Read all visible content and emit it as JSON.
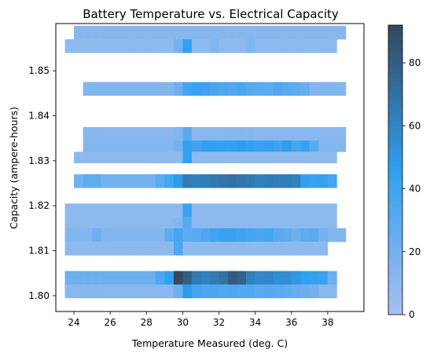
{
  "chart_data": {
    "type": "heatmap",
    "title": "Battery Temperature vs. Electrical Capacity",
    "xlabel": "Temperature Measured (deg. C)",
    "ylabel": "Capacity (ampere-hours)",
    "xlim": [
      23.0,
      40.0
    ],
    "ylim": [
      1.7965,
      1.8605
    ],
    "x_ticks": [
      24,
      26,
      28,
      30,
      32,
      34,
      36,
      38
    ],
    "y_ticks": [
      1.8,
      1.81,
      1.82,
      1.83,
      1.84,
      1.85
    ],
    "x_tick_labels": [
      "24",
      "26",
      "28",
      "30",
      "32",
      "34",
      "36",
      "38"
    ],
    "y_tick_labels": [
      "1.80",
      "1.81",
      "1.82",
      "1.83",
      "1.84",
      "1.85"
    ],
    "colorbar": {
      "min": 0,
      "max": 92,
      "ticks": [
        0,
        20,
        40,
        60,
        80
      ],
      "tick_labels": [
        "0",
        "20",
        "40",
        "60",
        "80"
      ],
      "color_low": "#a7c0ef",
      "color_mid": "#2f9ff0",
      "color_high": "#35485f"
    },
    "bin_width_x": 0.5,
    "rows": [
      {
        "y0": 1.857,
        "y1": 1.86,
        "x0": 24.0,
        "x1": 39.0,
        "base": 12,
        "hot": []
      },
      {
        "y0": 1.854,
        "y1": 1.857,
        "x0": 23.5,
        "x1": 38.5,
        "base": 10,
        "hot": [
          {
            "x": 29.5,
            "v": 20
          },
          {
            "x": 30.0,
            "v": 45
          },
          {
            "x": 31.5,
            "v": 15
          },
          {
            "x": 33.5,
            "v": 15
          }
        ]
      },
      {
        "y0": 1.8445,
        "y1": 1.8475,
        "x0": 24.5,
        "x1": 39.0,
        "base": 14,
        "hot": [
          {
            "x": 29.5,
            "v": 22
          },
          {
            "x": 30.0,
            "v": 38
          },
          {
            "x": 30.5,
            "v": 42
          },
          {
            "x": 31.0,
            "v": 40
          },
          {
            "x": 31.5,
            "v": 38
          },
          {
            "x": 32.0,
            "v": 35
          },
          {
            "x": 32.5,
            "v": 33
          },
          {
            "x": 33.0,
            "v": 36
          },
          {
            "x": 33.5,
            "v": 32
          },
          {
            "x": 34.0,
            "v": 30
          },
          {
            "x": 34.5,
            "v": 28
          },
          {
            "x": 35.0,
            "v": 33
          },
          {
            "x": 35.5,
            "v": 30
          },
          {
            "x": 36.0,
            "v": 28
          },
          {
            "x": 36.5,
            "v": 25
          }
        ]
      },
      {
        "y0": 1.8345,
        "y1": 1.8375,
        "x0": 24.5,
        "x1": 39.0,
        "base": 12,
        "hot": [
          {
            "x": 29.5,
            "v": 15
          },
          {
            "x": 30.0,
            "v": 30
          }
        ]
      },
      {
        "y0": 1.832,
        "y1": 1.8345,
        "x0": 24.5,
        "x1": 39.0,
        "base": 14,
        "hot": [
          {
            "x": 29.5,
            "v": 20
          },
          {
            "x": 30.0,
            "v": 45
          },
          {
            "x": 30.5,
            "v": 40
          },
          {
            "x": 31.0,
            "v": 45
          },
          {
            "x": 31.5,
            "v": 45
          },
          {
            "x": 32.0,
            "v": 45
          },
          {
            "x": 32.5,
            "v": 45
          },
          {
            "x": 33.0,
            "v": 47
          },
          {
            "x": 33.5,
            "v": 45
          },
          {
            "x": 34.0,
            "v": 42
          },
          {
            "x": 34.5,
            "v": 45
          },
          {
            "x": 35.0,
            "v": 40
          },
          {
            "x": 35.5,
            "v": 47
          },
          {
            "x": 36.0,
            "v": 38
          },
          {
            "x": 36.5,
            "v": 42
          },
          {
            "x": 37.0,
            "v": 30
          }
        ]
      },
      {
        "y0": 1.8295,
        "y1": 1.832,
        "x0": 24.0,
        "x1": 38.5,
        "base": 10,
        "hot": [
          {
            "x": 30.0,
            "v": 45
          }
        ]
      },
      {
        "y0": 1.824,
        "y1": 1.827,
        "x0": 24.0,
        "x1": 38.5,
        "base": 20,
        "hot": [
          {
            "x": 24.5,
            "v": 28
          },
          {
            "x": 25.0,
            "v": 28
          },
          {
            "x": 28.5,
            "v": 30
          },
          {
            "x": 29.0,
            "v": 38
          },
          {
            "x": 29.5,
            "v": 48
          },
          {
            "x": 30.0,
            "v": 65
          },
          {
            "x": 30.5,
            "v": 62
          },
          {
            "x": 31.0,
            "v": 64
          },
          {
            "x": 31.5,
            "v": 66
          },
          {
            "x": 32.0,
            "v": 68
          },
          {
            "x": 32.5,
            "v": 70
          },
          {
            "x": 33.0,
            "v": 68
          },
          {
            "x": 33.5,
            "v": 66
          },
          {
            "x": 34.0,
            "v": 62
          },
          {
            "x": 34.5,
            "v": 65
          },
          {
            "x": 35.0,
            "v": 63
          },
          {
            "x": 35.5,
            "v": 64
          },
          {
            "x": 36.0,
            "v": 62
          },
          {
            "x": 36.5,
            "v": 45
          },
          {
            "x": 37.0,
            "v": 42
          },
          {
            "x": 37.5,
            "v": 44
          },
          {
            "x": 38.0,
            "v": 38
          }
        ]
      },
      {
        "y0": 1.8175,
        "y1": 1.8205,
        "x0": 23.5,
        "x1": 38.5,
        "base": 10,
        "hot": [
          {
            "x": 30.0,
            "v": 42
          }
        ]
      },
      {
        "y0": 1.815,
        "y1": 1.8175,
        "x0": 23.5,
        "x1": 38.5,
        "base": 10,
        "hot": [
          {
            "x": 29.5,
            "v": 14
          },
          {
            "x": 30.0,
            "v": 30
          }
        ]
      },
      {
        "y0": 1.812,
        "y1": 1.815,
        "x0": 23.5,
        "x1": 39.0,
        "base": 14,
        "hot": [
          {
            "x": 25.0,
            "v": 22
          },
          {
            "x": 29.0,
            "v": 28
          },
          {
            "x": 29.5,
            "v": 38
          },
          {
            "x": 30.0,
            "v": 28
          },
          {
            "x": 30.5,
            "v": 30
          },
          {
            "x": 31.0,
            "v": 35
          },
          {
            "x": 31.5,
            "v": 40
          },
          {
            "x": 32.0,
            "v": 42
          },
          {
            "x": 32.5,
            "v": 42
          },
          {
            "x": 33.0,
            "v": 40
          },
          {
            "x": 33.5,
            "v": 38
          },
          {
            "x": 34.0,
            "v": 35
          },
          {
            "x": 34.5,
            "v": 38
          },
          {
            "x": 35.0,
            "v": 30
          },
          {
            "x": 35.5,
            "v": 28
          },
          {
            "x": 36.0,
            "v": 22
          },
          {
            "x": 36.5,
            "v": 28
          },
          {
            "x": 37.0,
            "v": 30
          },
          {
            "x": 37.5,
            "v": 20
          }
        ]
      },
      {
        "y0": 1.809,
        "y1": 1.812,
        "x0": 23.5,
        "x1": 38.0,
        "base": 10,
        "hot": [
          {
            "x": 29.5,
            "v": 35
          }
        ]
      },
      {
        "y0": 1.8025,
        "y1": 1.8055,
        "x0": 23.5,
        "x1": 38.5,
        "base": 22,
        "hot": [
          {
            "x": 28.5,
            "v": 35
          },
          {
            "x": 29.0,
            "v": 45
          },
          {
            "x": 29.5,
            "v": 92
          },
          {
            "x": 30.0,
            "v": 80
          },
          {
            "x": 30.5,
            "v": 65
          },
          {
            "x": 31.0,
            "v": 62
          },
          {
            "x": 31.5,
            "v": 65
          },
          {
            "x": 32.0,
            "v": 70
          },
          {
            "x": 32.5,
            "v": 82
          },
          {
            "x": 33.0,
            "v": 78
          },
          {
            "x": 33.5,
            "v": 62
          },
          {
            "x": 34.0,
            "v": 58
          },
          {
            "x": 34.5,
            "v": 60
          },
          {
            "x": 35.0,
            "v": 55
          },
          {
            "x": 35.5,
            "v": 55
          },
          {
            "x": 36.0,
            "v": 50
          },
          {
            "x": 36.5,
            "v": 45
          },
          {
            "x": 37.0,
            "v": 44
          },
          {
            "x": 37.5,
            "v": 42
          },
          {
            "x": 38.0,
            "v": 22
          }
        ]
      },
      {
        "y0": 1.7995,
        "y1": 1.8025,
        "x0": 23.5,
        "x1": 38.5,
        "base": 12,
        "hot": [
          {
            "x": 29.5,
            "v": 22
          },
          {
            "x": 30.0,
            "v": 48
          },
          {
            "x": 30.5,
            "v": 38
          },
          {
            "x": 31.0,
            "v": 35
          },
          {
            "x": 31.5,
            "v": 35
          },
          {
            "x": 32.0,
            "v": 33
          },
          {
            "x": 32.5,
            "v": 35
          },
          {
            "x": 33.0,
            "v": 32
          },
          {
            "x": 33.5,
            "v": 33
          },
          {
            "x": 34.0,
            "v": 30
          },
          {
            "x": 34.5,
            "v": 32
          },
          {
            "x": 35.0,
            "v": 30
          },
          {
            "x": 35.5,
            "v": 28
          },
          {
            "x": 36.0,
            "v": 25
          },
          {
            "x": 36.5,
            "v": 22
          },
          {
            "x": 37.0,
            "v": 20
          }
        ]
      }
    ]
  }
}
